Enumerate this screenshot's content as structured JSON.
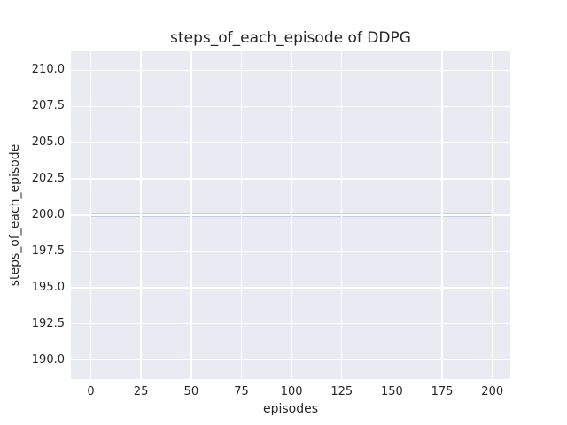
{
  "chart_data": {
    "type": "line",
    "title": "steps_of_each_episode of DDPG",
    "xlabel": "episodes",
    "ylabel": "steps_of_each_episode",
    "xlim": [
      -9.95,
      208.95
    ],
    "ylim": [
      188.7,
      211.3
    ],
    "xticks": [
      {
        "value": 0,
        "label": "0"
      },
      {
        "value": 25,
        "label": "25"
      },
      {
        "value": 50,
        "label": "50"
      },
      {
        "value": 75,
        "label": "75"
      },
      {
        "value": 100,
        "label": "100"
      },
      {
        "value": 125,
        "label": "125"
      },
      {
        "value": 150,
        "label": "150"
      },
      {
        "value": 175,
        "label": "175"
      },
      {
        "value": 200,
        "label": "200"
      }
    ],
    "yticks": [
      {
        "value": 190.0,
        "label": "190.0"
      },
      {
        "value": 192.5,
        "label": "192.5"
      },
      {
        "value": 195.0,
        "label": "195.0"
      },
      {
        "value": 197.5,
        "label": "197.5"
      },
      {
        "value": 200.0,
        "label": "200.0"
      },
      {
        "value": 202.5,
        "label": "202.5"
      },
      {
        "value": 205.0,
        "label": "205.0"
      },
      {
        "value": 207.5,
        "label": "207.5"
      },
      {
        "value": 210.0,
        "label": "210.0"
      }
    ],
    "series": [
      {
        "name": "steps_of_each_episode",
        "color": "#4c72b0",
        "linewidth": 2.5,
        "points": [
          [
            0,
            200
          ],
          [
            199,
            200
          ]
        ],
        "note": "constant value 200 for every episode 0-199"
      }
    ],
    "grid": true,
    "legend": "none",
    "colors": {
      "figure_background": "#ffffff",
      "plot_background": "#eaeaf2",
      "grid_color": "#ffffff",
      "text_color": "#262626"
    }
  }
}
